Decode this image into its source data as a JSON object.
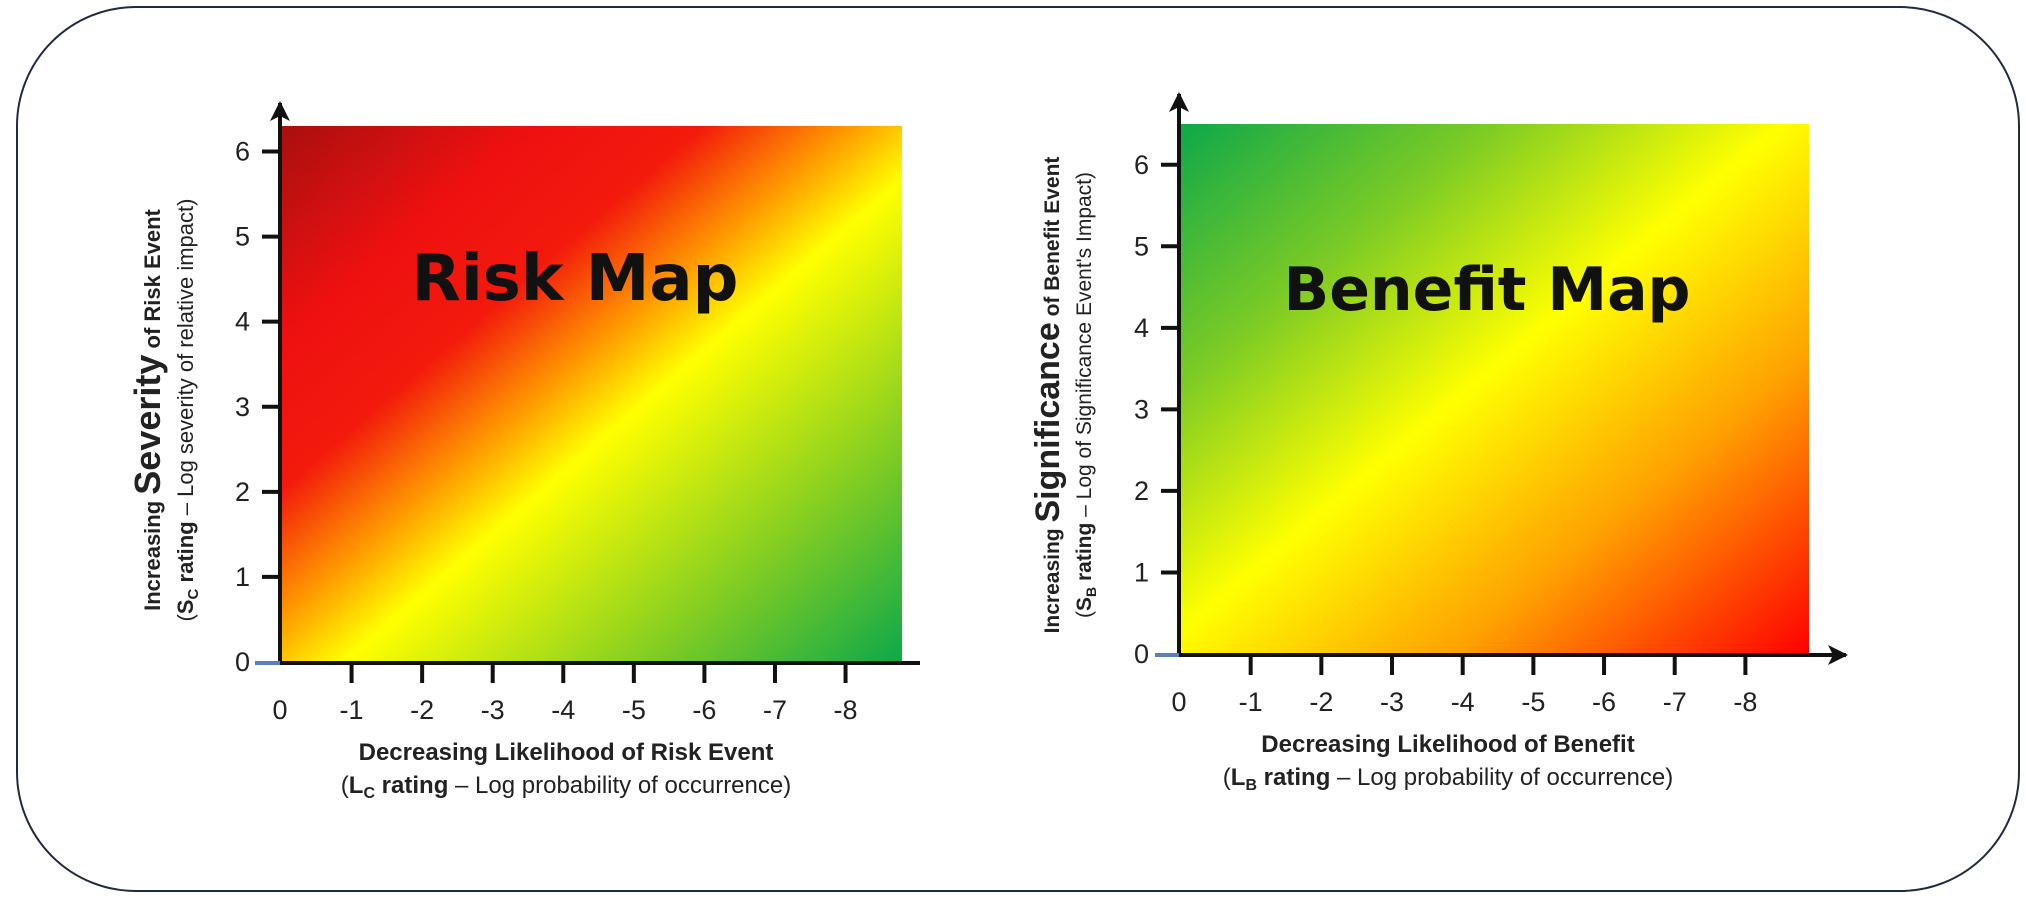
{
  "chart_data": [
    {
      "type": "heatmap",
      "title": "Risk Map",
      "x_ticks": [
        "0",
        "-1",
        "-2",
        "-3",
        "-4",
        "-5",
        "-6",
        "-7",
        "-8"
      ],
      "x_values": [
        0,
        -1,
        -2,
        -3,
        -4,
        -5,
        -6,
        -7,
        -8
      ],
      "y_ticks": [
        "0",
        "1",
        "2",
        "3",
        "4",
        "5",
        "6"
      ],
      "y_values": [
        0,
        1,
        2,
        3,
        4,
        5,
        6
      ],
      "xlim": [
        0,
        -8.8
      ],
      "ylim": [
        0,
        6.3
      ],
      "xlabel": {
        "line1": "Decreasing Likelihood of Risk Event",
        "line2_open": "(",
        "line2_sym": "L",
        "line2_sub": "C",
        "line2_bold_rest": " rating",
        "line2_rest": " – Log probability of occurrence)"
      },
      "ylabel": {
        "line1_pre": "Increasing ",
        "line1_big": "Severity",
        "line1_post": " of Risk Event",
        "line2_open": "(",
        "line2_sym": "S",
        "line2_sub": "C",
        "line2_bold_rest": " rating",
        "line2_rest": " – Log severity of relative impact)"
      },
      "gradient": {
        "direction": "top-left to bottom-right",
        "stops": [
          {
            "offset": 0,
            "color": "#a90f0f"
          },
          {
            "offset": 0.2,
            "color": "#ee1010"
          },
          {
            "offset": 0.34,
            "color": "#f31a0c"
          },
          {
            "offset": 0.46,
            "color": "#ff9a00"
          },
          {
            "offset": 0.55,
            "color": "#ffff00"
          },
          {
            "offset": 0.8,
            "color": "#7ecb24"
          },
          {
            "offset": 1,
            "color": "#0ea84a"
          }
        ]
      }
    },
    {
      "type": "heatmap",
      "title": "Benefit Map",
      "x_ticks": [
        "0",
        "-1",
        "-2",
        "-3",
        "-4",
        "-5",
        "-6",
        "-7",
        "-8"
      ],
      "x_values": [
        0,
        -1,
        -2,
        -3,
        -4,
        -5,
        -6,
        -7,
        -8
      ],
      "y_ticks": [
        "0",
        "1",
        "2",
        "3",
        "4",
        "5",
        "6"
      ],
      "y_values": [
        0,
        1,
        2,
        3,
        4,
        5,
        6
      ],
      "xlim": [
        0,
        -8.9
      ],
      "ylim": [
        0,
        6.5
      ],
      "xlabel": {
        "line1": "Decreasing Likelihood of Benefit",
        "line2_open": "(",
        "line2_sym": "L",
        "line2_sub": "B",
        "line2_bold_rest": " rating",
        "line2_rest": " – Log probability of occurrence)"
      },
      "ylabel": {
        "line1_pre": "Increasing ",
        "line1_big": "Significance",
        "line1_post": " of Benefit Event",
        "line2_open": "(",
        "line2_sym": "S",
        "line2_sub": "B",
        "line2_bold_rest": " rating",
        "line2_rest": " – Log of Significance Event's Impact)"
      },
      "gradient": {
        "direction": "top-left to bottom-right",
        "stops": [
          {
            "offset": 0,
            "color": "#0ea84a"
          },
          {
            "offset": 0.25,
            "color": "#7ecb24"
          },
          {
            "offset": 0.48,
            "color": "#ffff00"
          },
          {
            "offset": 0.72,
            "color": "#ffa000"
          },
          {
            "offset": 1,
            "color": "#ff0000"
          }
        ]
      }
    }
  ],
  "colors": {
    "frame": "#1f2a44",
    "axis": "#111111",
    "text": "#222222"
  }
}
